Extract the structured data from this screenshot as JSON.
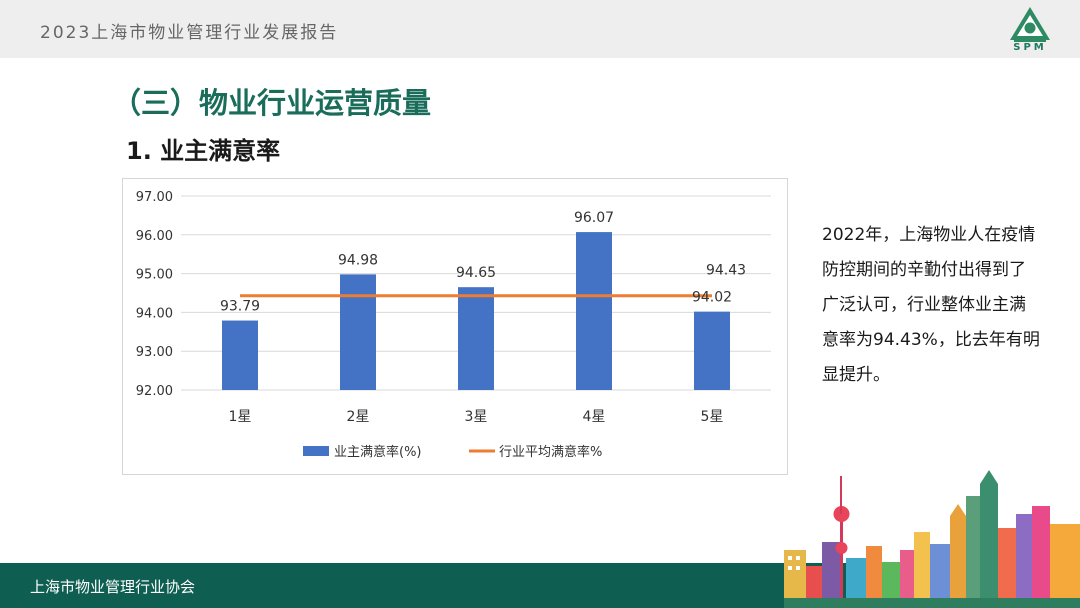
{
  "header": {
    "title": "2023上海市物业管理行业发展报告",
    "logo_text": "SPM"
  },
  "section": {
    "title": "（三）物业行业运营质量",
    "subtitle": "1. 业主满意率"
  },
  "description": "2022年，上海物业人在疫情防控期间的辛勤付出得到了广泛认可，行业整体业主满意率为94.43%，比去年有明显提升。",
  "footer": {
    "text": "上海市物业管理行业协会"
  },
  "colors": {
    "bar": "#4472c4",
    "line": "#ed7d31",
    "brand_green": "#1a6d5a",
    "footer": "#0f5e52"
  },
  "chart_data": {
    "type": "bar",
    "categories": [
      "1星",
      "2星",
      "3星",
      "4星",
      "5星"
    ],
    "series": [
      {
        "name": "业主满意率(%)",
        "type": "bar",
        "values": [
          93.79,
          94.98,
          94.65,
          96.07,
          94.02
        ]
      },
      {
        "name": "行业平均满意率%",
        "type": "line",
        "values": [
          94.43,
          94.43,
          94.43,
          94.43,
          94.43
        ]
      }
    ],
    "bar_labels": [
      "93.79",
      "94.98",
      "94.65",
      "96.07",
      "94.02"
    ],
    "line_label": "94.43",
    "y_ticks": [
      "97.00",
      "96.00",
      "95.00",
      "94.00",
      "93.00",
      "92.00"
    ],
    "ylim": [
      92,
      97
    ],
    "grid": true,
    "legend_position": "bottom"
  }
}
